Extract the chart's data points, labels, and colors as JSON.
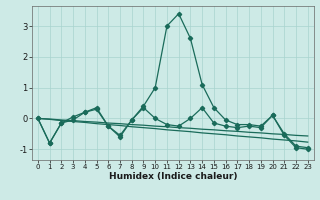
{
  "xlabel": "Humidex (Indice chaleur)",
  "bg_color": "#cdeae6",
  "grid_color": "#a8d4cf",
  "line_color": "#1a6b5a",
  "xlim": [
    -0.5,
    23.5
  ],
  "ylim": [
    -1.35,
    3.65
  ],
  "yticks": [
    -1,
    0,
    1,
    2,
    3
  ],
  "xticks": [
    0,
    1,
    2,
    3,
    4,
    5,
    6,
    7,
    8,
    9,
    10,
    11,
    12,
    13,
    14,
    15,
    16,
    17,
    18,
    19,
    20,
    21,
    22,
    23
  ],
  "series_spike": [
    0.0,
    -0.8,
    -0.15,
    0.05,
    0.2,
    0.3,
    -0.25,
    -0.6,
    -0.05,
    0.4,
    1.0,
    3.0,
    3.4,
    2.6,
    1.1,
    0.35,
    -0.05,
    -0.2,
    -0.2,
    -0.25,
    0.1,
    -0.5,
    -0.9,
    -0.95
  ],
  "series_osc": [
    0.0,
    -0.8,
    -0.15,
    -0.05,
    0.2,
    0.35,
    -0.25,
    -0.55,
    -0.05,
    0.35,
    0.0,
    -0.2,
    -0.25,
    0.0,
    0.35,
    -0.15,
    -0.25,
    -0.3,
    -0.25,
    -0.3,
    0.1,
    -0.55,
    -0.95,
    -1.0
  ],
  "trend1": [
    0.0,
    -0.02,
    -0.05,
    -0.07,
    -0.1,
    -0.12,
    -0.15,
    -0.17,
    -0.2,
    -0.22,
    -0.25,
    -0.27,
    -0.3,
    -0.32,
    -0.35,
    -0.37,
    -0.4,
    -0.42,
    -0.45,
    -0.47,
    -0.5,
    -0.52,
    -0.55,
    -0.57
  ],
  "trend2": [
    0.0,
    -0.03,
    -0.07,
    -0.1,
    -0.13,
    -0.17,
    -0.2,
    -0.23,
    -0.27,
    -0.3,
    -0.33,
    -0.37,
    -0.4,
    -0.43,
    -0.47,
    -0.5,
    -0.53,
    -0.57,
    -0.6,
    -0.63,
    -0.67,
    -0.7,
    -0.73,
    -0.77
  ]
}
